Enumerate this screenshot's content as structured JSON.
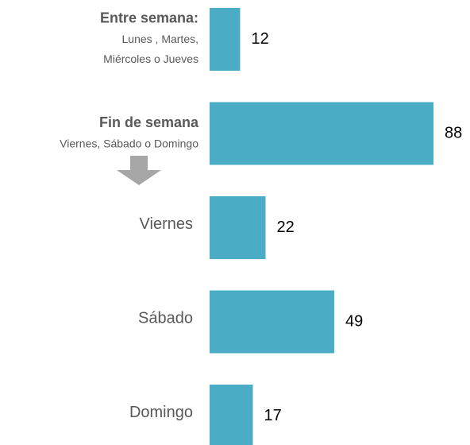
{
  "chart_data": {
    "type": "bar",
    "orientation": "horizontal",
    "color": "#4bacc6",
    "categories": [
      "Entre semana:",
      "Fin de semana",
      "Viernes",
      "Sábado",
      "Domingo"
    ],
    "category_notes": [
      [
        "Lunes , Martes,",
        "Miércoles o Jueves"
      ],
      [
        "Viernes, Sábado o Domingo"
      ],
      null,
      null,
      null
    ],
    "values": [
      12,
      88,
      22,
      49,
      17
    ]
  }
}
